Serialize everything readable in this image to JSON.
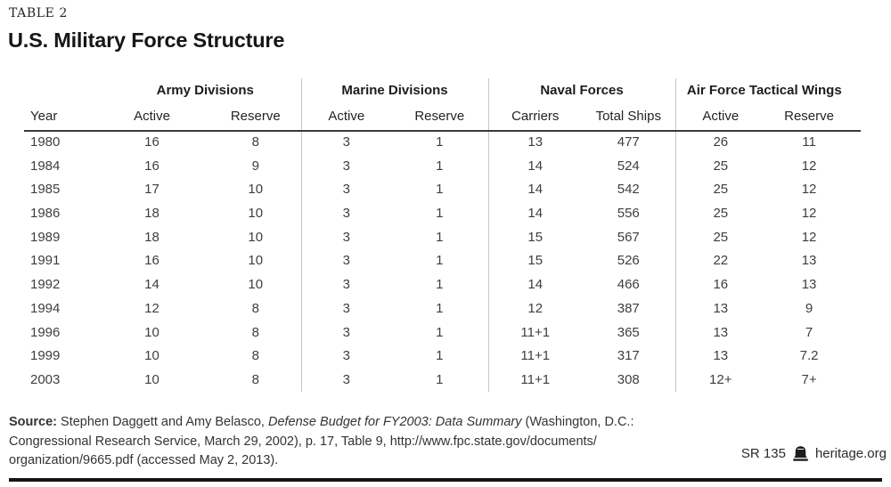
{
  "page": {
    "kicker": "TABLE 2",
    "title": "U.S. Military Force Structure"
  },
  "table": {
    "groups": [
      {
        "label": "Army Divisions"
      },
      {
        "label": "Marine Divisions"
      },
      {
        "label": "Naval Forces"
      },
      {
        "label": "Air Force Tactical Wings"
      }
    ],
    "columns": [
      "Year",
      "Active",
      "Reserve",
      "Active",
      "Reserve",
      "Carriers",
      "Total Ships",
      "Active",
      "Reserve"
    ],
    "rows": [
      [
        "1980",
        "16",
        "8",
        "3",
        "1",
        "13",
        "477",
        "26",
        "11"
      ],
      [
        "1984",
        "16",
        "9",
        "3",
        "1",
        "14",
        "524",
        "25",
        "12"
      ],
      [
        "1985",
        "17",
        "10",
        "3",
        "1",
        "14",
        "542",
        "25",
        "12"
      ],
      [
        "1986",
        "18",
        "10",
        "3",
        "1",
        "14",
        "556",
        "25",
        "12"
      ],
      [
        "1989",
        "18",
        "10",
        "3",
        "1",
        "15",
        "567",
        "25",
        "12"
      ],
      [
        "1991",
        "16",
        "10",
        "3",
        "1",
        "15",
        "526",
        "22",
        "13"
      ],
      [
        "1992",
        "14",
        "10",
        "3",
        "1",
        "14",
        "466",
        "16",
        "13"
      ],
      [
        "1994",
        "12",
        "8",
        "3",
        "1",
        "12",
        "387",
        "13",
        "9"
      ],
      [
        "1996",
        "10",
        "8",
        "3",
        "1",
        "11+1",
        "365",
        "13",
        "7"
      ],
      [
        "1999",
        "10",
        "8",
        "3",
        "1",
        "11+1",
        "317",
        "13",
        "7.2"
      ],
      [
        "2003",
        "10",
        "8",
        "3",
        "1",
        "11+1",
        "308",
        "12+",
        "7+"
      ]
    ]
  },
  "source": {
    "line1_label": "Source:",
    "line1_authors": " Stephen Daggett and Amy Belasco, ",
    "line1_work": "Defense Budget for FY2003: Data Summary",
    "line1_tail": " (Washington, D.C.:",
    "line2": "Congressional Research Service, March 29, 2002), p. 17, Table 9, http://www.fpc.state.gov/documents/",
    "line3": "organization/9665.pdf (accessed May 2, 2013)."
  },
  "footer": {
    "report_id": "SR 135",
    "site": "heritage.org",
    "logo_icon": "liberty-bell-icon"
  },
  "colors": {
    "text_dark": "#1d1d1d",
    "text_body": "#3e3e3e",
    "column_divider": "#c5c5c5",
    "header_rule": "#3b3b3b",
    "footer_rule": "#141414"
  }
}
